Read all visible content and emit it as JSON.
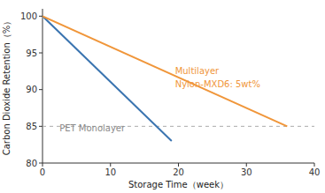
{
  "chart_data": {
    "type": "line",
    "xlabel": "Storage Time（week）",
    "ylabel": "Carbon Dioxide Retention（%）",
    "xlim": [
      0,
      40
    ],
    "ylim": [
      80,
      101
    ],
    "xticks": [
      0,
      10,
      20,
      30,
      40
    ],
    "yticks": [
      80,
      85,
      90,
      95,
      100
    ],
    "grid": false,
    "series": [
      {
        "color": "#3a74b0",
        "x": [
          0,
          19
        ],
        "values": [
          100,
          83.0
        ]
      },
      {
        "color": "#f0963a",
        "x": [
          0,
          36
        ],
        "values": [
          100,
          85.0
        ]
      }
    ],
    "hline": {
      "value": 85,
      "color": "#aaaaaa",
      "line_style": "dashed"
    },
    "annotations": [
      {
        "text": "Multilayer",
        "x": 19.5,
        "y": 92.5,
        "color": "#f0963a"
      },
      {
        "text": "Nylon-MXD6: 5wt%",
        "x": 19.5,
        "y": 90.8,
        "color": "#f0963a"
      },
      {
        "text": "PET Monolayer",
        "x": 2.5,
        "y": 84.8,
        "color": "#888888"
      }
    ]
  }
}
